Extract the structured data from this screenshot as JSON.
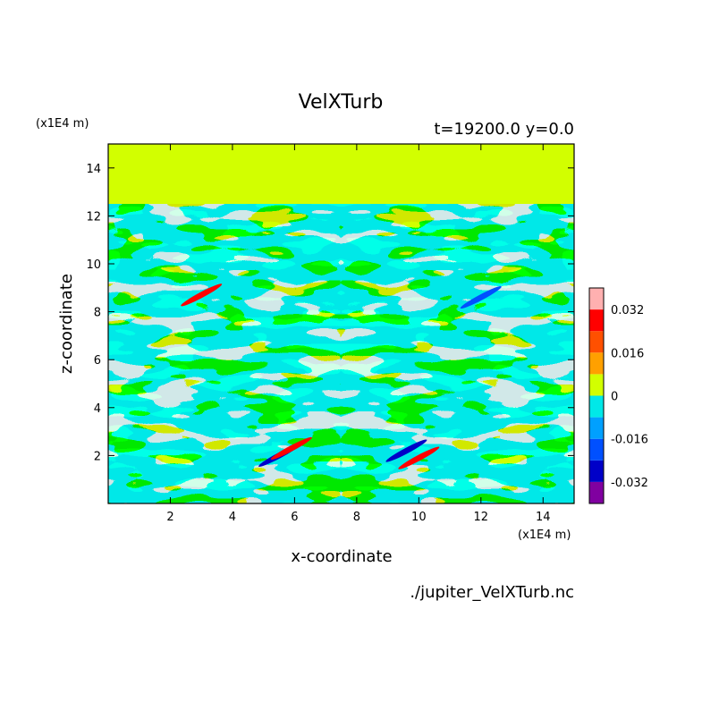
{
  "chart_data": {
    "type": "heatmap",
    "title": "VelXTurb",
    "subtitle": "t=19200.0 y=0.0",
    "xlabel": "x-coordinate",
    "ylabel": "z-coordinate",
    "x_unit": "(x1E4 m)",
    "y_unit": "(x1E4 m)",
    "source_file": "./jupiter_VelXTurb.nc",
    "xlim": [
      0.0,
      15.0
    ],
    "ylim": [
      0.0,
      15.0
    ],
    "x_ticks": [
      2,
      4,
      6,
      8,
      10,
      12,
      14
    ],
    "y_ticks": [
      2,
      4,
      6,
      8,
      10,
      12,
      14
    ],
    "turbulent_layer_top": 12.5,
    "colorbar": {
      "levels": [
        -0.04,
        -0.032,
        -0.024,
        -0.016,
        -0.008,
        0,
        0.008,
        0.016,
        0.024,
        0.032,
        0.04
      ],
      "colors": [
        "#8000a0",
        "#0000c8",
        "#0050ff",
        "#00a0ff",
        "#00e8e8",
        "#d2ff00",
        "#ffa000",
        "#ff5000",
        "#ff0000",
        "#ffb0b0"
      ],
      "tick_labels": [
        "0.032",
        "0.016",
        "0",
        "-0.016",
        "-0.032"
      ],
      "tick_values": [
        0.032,
        0.016,
        0,
        -0.016,
        -0.032
      ]
    },
    "background_value": 0.002,
    "features": [
      {
        "x": 5.5,
        "z": 2.0,
        "value": -0.03
      },
      {
        "x": 5.9,
        "z": 2.3,
        "value": 0.026
      },
      {
        "x": 9.6,
        "z": 2.2,
        "value": -0.03
      },
      {
        "x": 10.0,
        "z": 1.9,
        "value": 0.026
      },
      {
        "x": 3.0,
        "z": 8.7,
        "value": 0.024
      },
      {
        "x": 12.0,
        "z": 8.6,
        "value": -0.02
      }
    ]
  }
}
